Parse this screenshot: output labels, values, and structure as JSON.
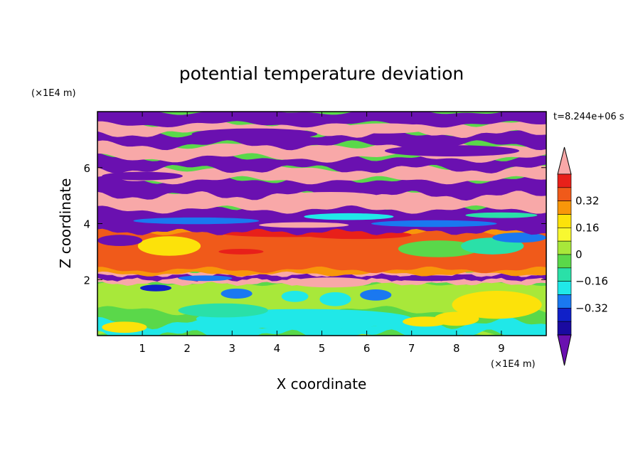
{
  "chart_data": {
    "type": "heatmap",
    "title": "potential temperature deviation",
    "xlabel": "X coordinate",
    "ylabel": "Z coordinate",
    "x_unit": "(×1E4 m)",
    "y_unit": "(×1E4 m)",
    "time_label": "t=8.244e+06 s",
    "xlim": [
      0,
      10
    ],
    "ylim": [
      0,
      8
    ],
    "x_ticks": [
      "1",
      "2",
      "3",
      "4",
      "5",
      "6",
      "7",
      "8",
      "9"
    ],
    "y_ticks": [
      "2",
      "4",
      "6"
    ],
    "colorbar": {
      "levels": [
        -0.48,
        -0.4,
        -0.32,
        -0.24,
        -0.16,
        -0.08,
        0,
        0.08,
        0.16,
        0.24,
        0.32,
        0.4,
        0.48
      ],
      "labels": [
        "0.32",
        "0.16",
        "0",
        "−0.16",
        "−0.32"
      ],
      "label_values": [
        0.32,
        0.16,
        0,
        -0.16,
        -0.32
      ],
      "colors": [
        "#f8a8a8",
        "#e8201a",
        "#f05a1a",
        "#f8960a",
        "#fce20a",
        "#f8f830",
        "#a8e83a",
        "#5ad84a",
        "#2ae0a8",
        "#20e8e8",
        "#1a78f0",
        "#1020c8",
        "#1a0aa0",
        "#6a10b0"
      ],
      "extend": "both"
    },
    "bands": [
      {
        "z_from": 0.0,
        "z_to": 0.7,
        "class": "cyan-green"
      },
      {
        "z_from": 0.7,
        "z_to": 1.9,
        "class": "green-yellow"
      },
      {
        "z_from": 1.9,
        "z_to": 2.3,
        "class": "pink-purple-mixed"
      },
      {
        "z_from": 2.3,
        "z_to": 3.8,
        "class": "orange-red"
      },
      {
        "z_from": 3.8,
        "z_to": 4.6,
        "class": "purple-blue-mixed"
      },
      {
        "z_from": 4.6,
        "z_to": 8.0,
        "class": "pink-purple-stripes"
      }
    ]
  }
}
